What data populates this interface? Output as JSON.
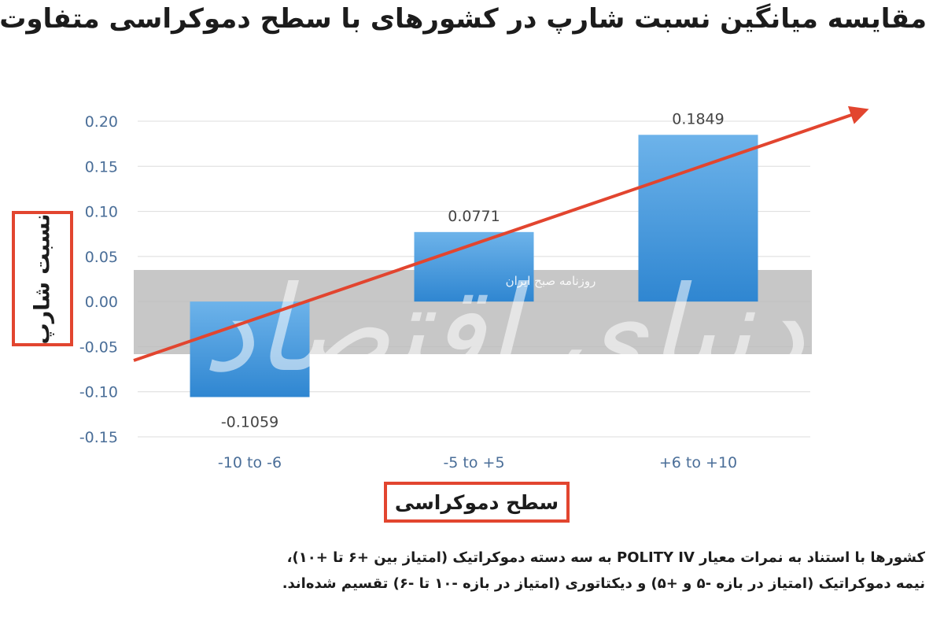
{
  "title": "مقایسه میانگین نسبت شارپ در کشورهای با سطح دموکراسی متفاوت",
  "watermark": "دنیای اقتصاد",
  "watermark_sub": "روزنامه صبح ایران",
  "chart_data": {
    "type": "bar",
    "categories": [
      "-10 to -6",
      "-5 to +5",
      "+6 to +10"
    ],
    "values": [
      -0.1059,
      0.0771,
      0.1849
    ],
    "data_labels": [
      "-0.1059",
      "0.0771",
      "0.1849"
    ],
    "ylim": [
      -0.15,
      0.2
    ],
    "yticks": [
      0.2,
      0.15,
      0.1,
      0.05,
      0.0,
      -0.05,
      -0.1,
      -0.15
    ],
    "ytick_labels": [
      "0.20",
      "0.15",
      "0.10",
      "0.05",
      "0.00",
      "-0.05",
      "-0.10",
      "-0.15"
    ],
    "ylabel": "نسبت شارپ",
    "xlabel": "سطح دموکراسی",
    "grid": true,
    "bar_color": "#3a8fd6",
    "bar_color_light": "#6db3ea",
    "arrow_color": "#e2452f",
    "box_color": "#e2452f",
    "band_color": "#bdbdbd"
  },
  "caption": {
    "line1": "کشورها با استناد به نمرات معیار POLITY IV به سه دسته دموکراتیک (امتیاز بین +۶ تا +۱۰)،",
    "line2": "نیمه دموکراتیک (امتیاز در بازه -۵ و +۵) و دیکتاتوری (امتیاز در بازه -۱۰ تا -۶) تقسیم شده‌اند."
  }
}
